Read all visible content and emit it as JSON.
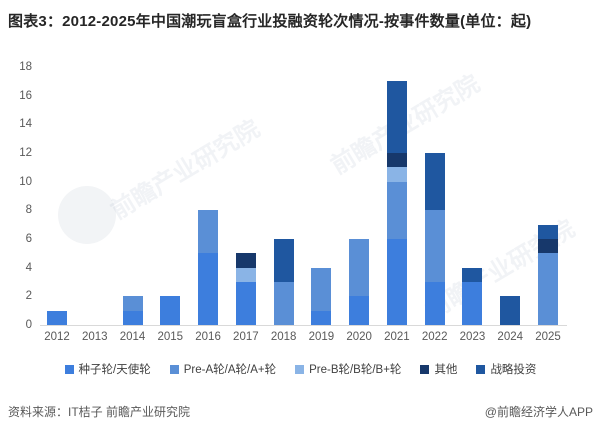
{
  "title": "图表3：2012-2025年中国潮玩盲盒行业投融资轮次情况-按事件数量(单位：起)",
  "watermark": {
    "text": "前瞻产业研究院"
  },
  "source": {
    "left": "资料来源：IT桔子 前瞻产业研究院",
    "right": "@前瞻经济学人APP"
  },
  "chart_data": {
    "type": "bar",
    "stacked": true,
    "title": "图表3：2012-2025年中国潮玩盲盒行业投融资轮次情况-按事件数量(单位：起)",
    "xlabel": "",
    "ylabel": "",
    "ylim": [
      0,
      18
    ],
    "ytick_step": 2,
    "grid": false,
    "legend_position": "bottom",
    "categories": [
      "2012",
      "2013",
      "2014",
      "2015",
      "2016",
      "2017",
      "2018",
      "2019",
      "2020",
      "2021",
      "2022",
      "2023",
      "2024",
      "2025"
    ],
    "series": [
      {
        "name": "种子轮/天使轮",
        "color": "#3d7edd",
        "values": [
          1,
          0,
          1,
          2,
          5,
          3,
          0,
          1,
          2,
          6,
          3,
          3,
          0,
          0
        ]
      },
      {
        "name": "Pre-A轮/A轮/A+轮",
        "color": "#5a8fd6",
        "values": [
          0,
          0,
          1,
          0,
          3,
          0,
          3,
          3,
          4,
          4,
          5,
          0,
          0,
          5
        ]
      },
      {
        "name": "Pre-B轮/B轮/B+轮",
        "color": "#8ab4e6",
        "values": [
          0,
          0,
          0,
          0,
          0,
          1,
          0,
          0,
          0,
          1,
          0,
          0,
          0,
          0
        ]
      },
      {
        "name": "其他",
        "color": "#17386b",
        "values": [
          0,
          0,
          0,
          0,
          0,
          1,
          0,
          0,
          0,
          1,
          0,
          0,
          0,
          1
        ]
      },
      {
        "name": "战略投资",
        "color": "#1f57a0",
        "values": [
          0,
          0,
          0,
          0,
          0,
          0,
          3,
          0,
          0,
          5,
          4,
          1,
          2,
          1
        ]
      }
    ],
    "totals_by_year": [
      1,
      0,
      2,
      2,
      8,
      5,
      6,
      4,
      6,
      17,
      12,
      4,
      2,
      7
    ]
  }
}
